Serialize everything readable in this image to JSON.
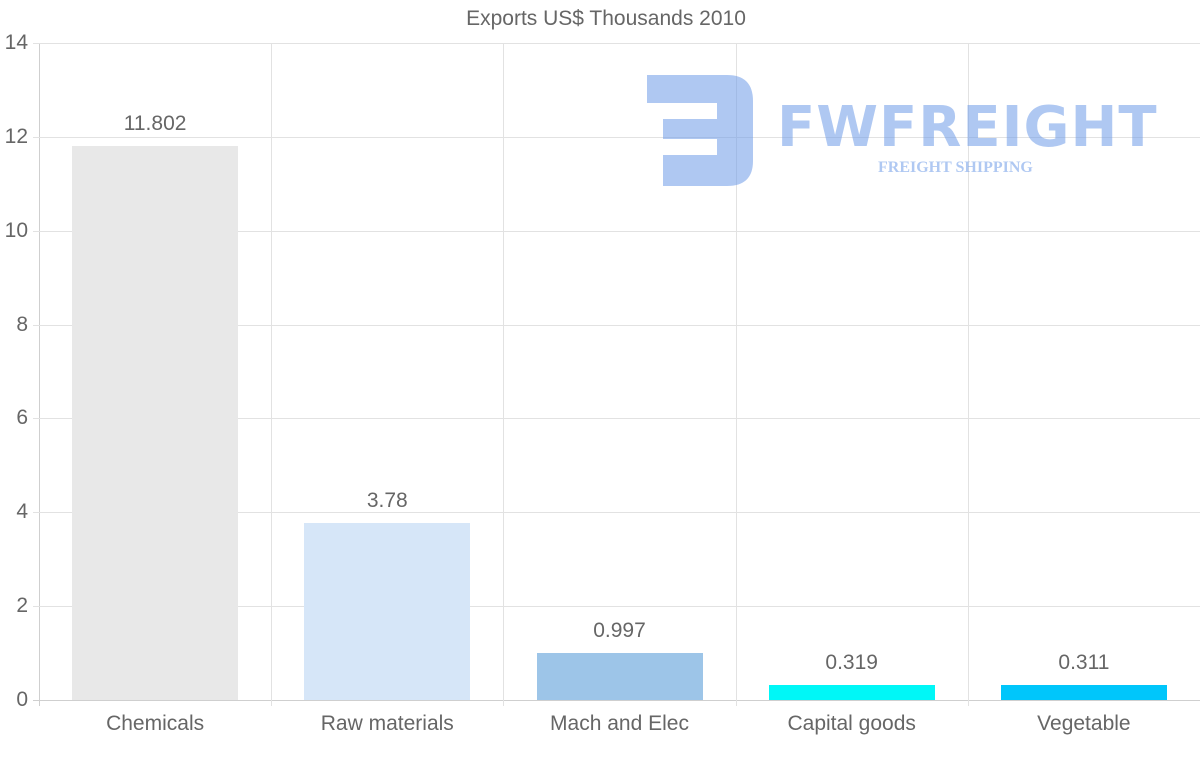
{
  "chart_data": {
    "type": "bar",
    "title": "Exports US$ Thousands 2010",
    "xlabel": "",
    "ylabel": "",
    "categories": [
      "Chemicals",
      "Raw materials",
      "Mach and Elec",
      "Capital goods",
      "Vegetable"
    ],
    "values": [
      11.802,
      3.78,
      0.997,
      0.319,
      0.311
    ],
    "value_labels": [
      "11.802",
      "3.78",
      "0.997",
      "0.319",
      "0.311"
    ],
    "colors": [
      "#e8e8e8",
      "#d6e6f8",
      "#9dc5e8",
      "#00f7f7",
      "#00c6fb"
    ],
    "ylim": [
      0,
      14
    ],
    "yticks": [
      "0",
      "2",
      "4",
      "6",
      "8",
      "10",
      "12",
      "14"
    ],
    "grid": true,
    "legend": null
  },
  "watermark": {
    "logo_text": "FWFREIGHT",
    "subtitle": "FREIGHT SHIPPING",
    "color": "#6f9ce8"
  }
}
